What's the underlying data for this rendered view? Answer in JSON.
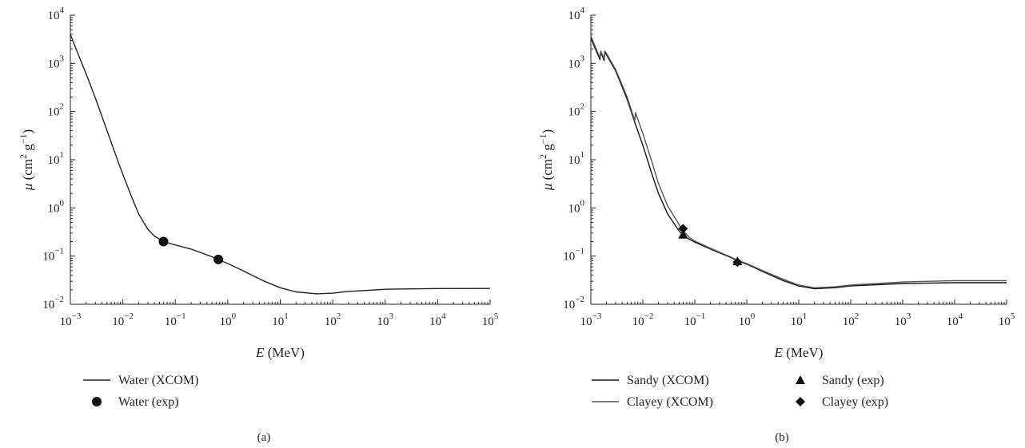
{
  "chart_data": [
    {
      "panel": "(a)",
      "type": "line",
      "xscale": "log",
      "yscale": "log",
      "xlim": [
        0.001,
        100000
      ],
      "ylim": [
        0.01,
        10000
      ],
      "x_tick_labels": [
        "10",
        "10",
        "10",
        "10",
        "10",
        "10",
        "10",
        "10",
        "10"
      ],
      "x_tick_exponents": [
        "−3",
        "−2",
        "−1",
        "0",
        "1",
        "2",
        "3",
        "4",
        "5"
      ],
      "y_tick_labels": [
        "10",
        "10",
        "10",
        "10",
        "10",
        "10",
        "10"
      ],
      "y_tick_exponents": [
        "−2",
        "−1",
        "0",
        "1",
        "2",
        "3",
        "4"
      ],
      "xlabel": {
        "symbol": "E",
        "rest": " (MeV)"
      },
      "ylabel": {
        "symbol": "μ",
        "rest": " (cm",
        "sup1": "2",
        "mid": " g",
        "sup2": "−1",
        "end": ")"
      },
      "legend": [
        "Water (XCOM)",
        "Water (exp)"
      ],
      "grid": false,
      "series": [
        {
          "name": "Water (XCOM)",
          "kind": "line",
          "color": "#222222",
          "x": [
            0.001,
            0.0015,
            0.002,
            0.003,
            0.005,
            0.008,
            0.01,
            0.015,
            0.02,
            0.03,
            0.04,
            0.06,
            0.1,
            0.2,
            0.5,
            1,
            2,
            5,
            10,
            20,
            50,
            100,
            200,
            500,
            1000,
            10000,
            100000
          ],
          "y": [
            4000,
            1300,
            600,
            190,
            40,
            9.5,
            5,
            1.6,
            0.75,
            0.36,
            0.26,
            0.2,
            0.17,
            0.14,
            0.097,
            0.07,
            0.049,
            0.03,
            0.022,
            0.018,
            0.0165,
            0.017,
            0.0185,
            0.0195,
            0.0205,
            0.0212,
            0.0213
          ]
        },
        {
          "name": "Water (exp)",
          "kind": "circle",
          "color": "#111111",
          "x": [
            0.0595,
            0.662
          ],
          "y": [
            0.2,
            0.085
          ]
        }
      ]
    },
    {
      "panel": "(b)",
      "type": "line",
      "xscale": "log",
      "yscale": "log",
      "xlim": [
        0.001,
        100000
      ],
      "ylim": [
        0.01,
        10000
      ],
      "x_tick_labels": [
        "10",
        "10",
        "10",
        "10",
        "10",
        "10",
        "10",
        "10",
        "10"
      ],
      "x_tick_exponents": [
        "−3",
        "−2",
        "−1",
        "0",
        "1",
        "2",
        "3",
        "4",
        "5"
      ],
      "y_tick_labels": [
        "10",
        "10",
        "10",
        "10",
        "10",
        "10",
        "10"
      ],
      "y_tick_exponents": [
        "−2",
        "−1",
        "0",
        "1",
        "2",
        "3",
        "4"
      ],
      "xlabel": {
        "symbol": "E",
        "rest": " (MeV)"
      },
      "ylabel": {
        "symbol": "μ",
        "rest": " (cm",
        "sup1": "2",
        "mid": " g",
        "sup2": "−1",
        "end": ")"
      },
      "legend": [
        "Sandy (XCOM)",
        "Clayey (XCOM)",
        "Sandy (exp)",
        "Clayey (exp)"
      ],
      "grid": false,
      "series": [
        {
          "name": "Sandy (XCOM)",
          "kind": "line",
          "color": "#111111",
          "x": [
            0.001,
            0.0015,
            0.00155,
            0.0018,
            0.00185,
            0.002,
            0.003,
            0.005,
            0.007,
            0.01,
            0.015,
            0.02,
            0.03,
            0.05,
            0.06,
            0.08,
            0.1,
            0.2,
            0.5,
            0.7,
            1,
            2,
            5,
            10,
            20,
            50,
            100,
            1000,
            10000,
            100000
          ],
          "y": [
            3300,
            1200,
            1700,
            1150,
            1700,
            1500,
            700,
            180,
            60,
            20,
            5,
            2,
            0.75,
            0.33,
            0.27,
            0.22,
            0.195,
            0.14,
            0.093,
            0.078,
            0.068,
            0.048,
            0.031,
            0.024,
            0.021,
            0.022,
            0.024,
            0.027,
            0.028,
            0.028
          ]
        },
        {
          "name": "Clayey (XCOM)",
          "kind": "line",
          "color": "#555555",
          "x": [
            0.001,
            0.0015,
            0.00155,
            0.0018,
            0.00185,
            0.002,
            0.003,
            0.005,
            0.007,
            0.0072,
            0.01,
            0.015,
            0.02,
            0.03,
            0.05,
            0.06,
            0.08,
            0.1,
            0.2,
            0.5,
            0.7,
            1,
            2,
            5,
            10,
            20,
            50,
            100,
            1000,
            10000,
            100000
          ],
          "y": [
            3700,
            1300,
            1800,
            1250,
            1800,
            1600,
            750,
            200,
            65,
            95,
            35,
            9,
            3.2,
            1.1,
            0.45,
            0.33,
            0.24,
            0.205,
            0.145,
            0.095,
            0.08,
            0.07,
            0.05,
            0.033,
            0.025,
            0.022,
            0.023,
            0.025,
            0.029,
            0.031,
            0.031
          ]
        },
        {
          "name": "Sandy (exp)",
          "kind": "triangle",
          "color": "#111111",
          "x": [
            0.0595,
            0.662
          ],
          "y": [
            0.28,
            0.078
          ]
        },
        {
          "name": "Clayey (exp)",
          "kind": "diamond",
          "color": "#111111",
          "x": [
            0.0595,
            0.662
          ],
          "y": [
            0.37,
            0.075
          ]
        }
      ]
    }
  ]
}
